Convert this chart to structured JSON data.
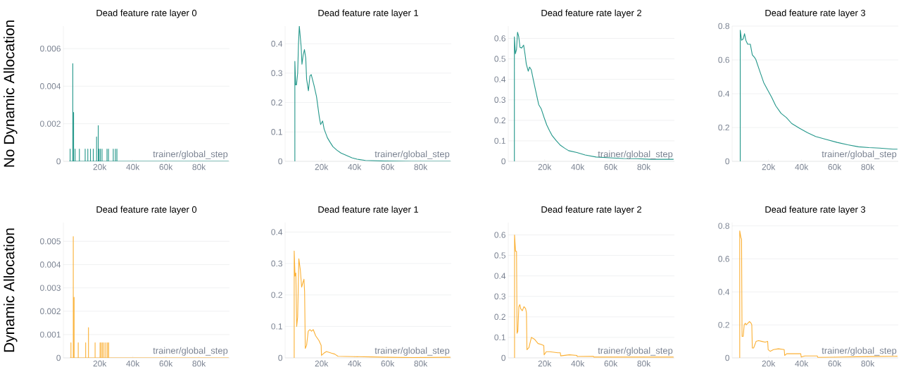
{
  "chart_data": [
    {
      "type": "line",
      "title": "Dead feature rate layer 0",
      "xlabel": "trainer/global_step",
      "ylabel": "No Dynamic Allocation",
      "color": "#23978a",
      "grid": "y",
      "xlim": [
        -2000,
        98500
      ],
      "xticks": [
        {
          "value": 20000,
          "label": "20k"
        },
        {
          "value": 40000,
          "label": "40k"
        },
        {
          "value": 60000,
          "label": "60k"
        },
        {
          "value": 80000,
          "label": "80k"
        }
      ],
      "ylim": [
        0,
        0.0072
      ],
      "yticks": [
        0,
        0.002,
        0.004,
        0.006
      ],
      "x": [
        1500,
        2100,
        2100,
        2100,
        3700,
        3700,
        3700,
        4200,
        4200,
        4200,
        5100,
        5100,
        5100,
        7700,
        7700,
        7700,
        11200,
        11200,
        11200,
        12800,
        12800,
        12800,
        14400,
        14400,
        14400,
        16100,
        16100,
        16100,
        18100,
        18100,
        18100,
        19100,
        19100,
        19100,
        19600,
        19600,
        19600,
        20400,
        20400,
        20400,
        21400,
        21400,
        21400,
        24400,
        24400,
        24400,
        25300,
        25300,
        25300,
        28200,
        28200,
        28200,
        29500,
        29500,
        29500,
        30400,
        30400,
        30400,
        98000
      ],
      "values": [
        0,
        0,
        0.00065,
        0,
        0,
        0.0052,
        0,
        0,
        0.0026,
        0,
        0,
        0.00065,
        0,
        0,
        0.00065,
        0,
        0,
        0.00065,
        0,
        0,
        0.00065,
        0,
        0,
        0.00065,
        0,
        0,
        0.00065,
        0,
        0,
        0.0013,
        0,
        0,
        0.0019,
        0,
        0,
        0.00065,
        0,
        0,
        0.00065,
        0,
        0,
        0.00065,
        0,
        0,
        0.00065,
        0,
        0,
        0.00065,
        0,
        0,
        0.00065,
        0,
        0,
        0.00065,
        0,
        0,
        0.00065,
        0,
        0
      ]
    },
    {
      "type": "line",
      "title": "Dead feature rate layer 1",
      "xlabel": "trainer/global_step",
      "color": "#23978a",
      "grid": "y",
      "xlim": [
        -2000,
        98500
      ],
      "xticks": [
        {
          "value": 20000,
          "label": "20k"
        },
        {
          "value": 40000,
          "label": "40k"
        },
        {
          "value": 60000,
          "label": "60k"
        },
        {
          "value": 80000,
          "label": "80k"
        }
      ],
      "ylim": [
        0,
        0.46
      ],
      "yticks": [
        0,
        0.1,
        0.2,
        0.3,
        0.4
      ],
      "x": [
        3900,
        3900,
        4400,
        4900,
        5600,
        6100,
        6600,
        7700,
        8200,
        8900,
        9700,
        10500,
        11000,
        12100,
        13000,
        13800,
        15400,
        17000,
        18700,
        19500,
        20700,
        21600,
        23600,
        25200,
        26900,
        29300,
        31800,
        35100,
        38400,
        41600,
        46600,
        58000,
        74400,
        98000
      ],
      "values": [
        0,
        0.34,
        0.26,
        0.26,
        0.3,
        0.4,
        0.46,
        0.39,
        0.33,
        0.36,
        0.38,
        0.35,
        0.28,
        0.24,
        0.29,
        0.295,
        0.26,
        0.22,
        0.15,
        0.125,
        0.137,
        0.11,
        0.08,
        0.065,
        0.05,
        0.038,
        0.028,
        0.02,
        0.012,
        0.007,
        0.003,
        0.001,
        0,
        0
      ]
    },
    {
      "type": "line",
      "title": "Dead feature rate layer 2",
      "xlabel": "trainer/global_step",
      "color": "#23978a",
      "grid": "y",
      "xlim": [
        -2000,
        98500
      ],
      "xticks": [
        {
          "value": 20000,
          "label": "20k"
        },
        {
          "value": 40000,
          "label": "40k"
        },
        {
          "value": 60000,
          "label": "60k"
        },
        {
          "value": 80000,
          "label": "80k"
        }
      ],
      "ylim": [
        0,
        0.66
      ],
      "yticks": [
        0,
        0.1,
        0.2,
        0.3,
        0.4,
        0.5,
        0.6
      ],
      "x": [
        1700,
        1700,
        2300,
        3000,
        3600,
        4300,
        5100,
        6100,
        7300,
        8100,
        8900,
        10100,
        10900,
        11900,
        13100,
        14700,
        16400,
        18000,
        19700,
        21300,
        23000,
        24600,
        27100,
        29600,
        32100,
        34500,
        39500,
        44500,
        51100,
        59300,
        67600,
        75900,
        84100,
        98000
      ],
      "values": [
        0,
        0.607,
        0.525,
        0.546,
        0.63,
        0.61,
        0.556,
        0.553,
        0.567,
        0.525,
        0.475,
        0.44,
        0.46,
        0.447,
        0.4,
        0.34,
        0.277,
        0.255,
        0.213,
        0.177,
        0.149,
        0.125,
        0.1,
        0.078,
        0.064,
        0.052,
        0.043,
        0.031,
        0.021,
        0.017,
        0.014,
        0.013,
        0.01,
        0.01
      ]
    },
    {
      "type": "line",
      "title": "Dead feature rate layer 3",
      "xlabel": "trainer/global_step",
      "color": "#23978a",
      "grid": "y",
      "xlim": [
        -2000,
        98500
      ],
      "xticks": [
        {
          "value": 20000,
          "label": "20k"
        },
        {
          "value": 40000,
          "label": "40k"
        },
        {
          "value": 60000,
          "label": "60k"
        },
        {
          "value": 80000,
          "label": "80k"
        }
      ],
      "ylim": [
        0,
        0.8
      ],
      "yticks": [
        0,
        0.2,
        0.4,
        0.6,
        0.8
      ],
      "x": [
        2900,
        2900,
        3700,
        4700,
        5500,
        6300,
        7400,
        9000,
        10200,
        11500,
        12300,
        14700,
        17100,
        19500,
        21900,
        24400,
        27600,
        30800,
        34000,
        38900,
        43700,
        48500,
        55000,
        61500,
        67900,
        74400,
        80800,
        87300,
        95300,
        98000
      ],
      "values": [
        0,
        0.776,
        0.716,
        0.724,
        0.755,
        0.716,
        0.693,
        0.693,
        0.63,
        0.615,
        0.603,
        0.534,
        0.466,
        0.422,
        0.379,
        0.328,
        0.284,
        0.259,
        0.224,
        0.195,
        0.169,
        0.147,
        0.129,
        0.112,
        0.098,
        0.086,
        0.081,
        0.078,
        0.072,
        0.072
      ]
    },
    {
      "type": "line",
      "title": "Dead feature rate layer 0",
      "xlabel": "trainer/global_step",
      "ylabel": "Dynamic Allocation",
      "color": "#fbb034",
      "grid": "y",
      "xlim": [
        -2000,
        98500
      ],
      "xticks": [
        {
          "value": 20000,
          "label": "20k"
        },
        {
          "value": 40000,
          "label": "40k"
        },
        {
          "value": 60000,
          "label": "60k"
        },
        {
          "value": 80000,
          "label": "80k"
        }
      ],
      "ylim": [
        0,
        0.0058
      ],
      "yticks": [
        0,
        0.001,
        0.002,
        0.003,
        0.004,
        0.005
      ],
      "x": [
        2000,
        2600,
        2600,
        2600,
        4000,
        4000,
        4000,
        4500,
        4500,
        4500,
        7000,
        7000,
        7000,
        11500,
        11500,
        11500,
        13200,
        13200,
        13200,
        17200,
        17200,
        17200,
        20200,
        20200,
        20200,
        20900,
        20900,
        20900,
        21700,
        21700,
        21700,
        22600,
        22600,
        22600,
        23700,
        23700,
        23700,
        24700,
        24700,
        24700,
        25400,
        25400,
        25400,
        98000
      ],
      "values": [
        0,
        0,
        0.00065,
        0,
        0,
        0.0052,
        0,
        0,
        0.0026,
        0,
        0,
        0.00065,
        0,
        0,
        0.00065,
        0,
        0,
        0.0013,
        0,
        0,
        0.00065,
        0,
        0,
        0.00065,
        0,
        0,
        0.00065,
        0,
        0,
        0.00065,
        0,
        0,
        0.00065,
        0,
        0,
        0.00065,
        0,
        0,
        0.00065,
        0,
        0,
        0.00065,
        0,
        0
      ]
    },
    {
      "type": "line",
      "title": "Dead feature rate layer 1",
      "xlabel": "trainer/global_step",
      "color": "#fbb034",
      "grid": "y",
      "xlim": [
        -2000,
        98500
      ],
      "xticks": [
        {
          "value": 20000,
          "label": "20k"
        },
        {
          "value": 40000,
          "label": "40k"
        },
        {
          "value": 60000,
          "label": "60k"
        },
        {
          "value": 80000,
          "label": "80k"
        }
      ],
      "ylim": [
        0,
        0.43
      ],
      "yticks": [
        0,
        0.1,
        0.2,
        0.3,
        0.4
      ],
      "x": [
        3500,
        3500,
        4000,
        4500,
        5000,
        5600,
        6300,
        7200,
        8000,
        8800,
        9400,
        9800,
        10200,
        11000,
        12000,
        13000,
        14000,
        15000,
        16500,
        18500,
        19800,
        20000,
        21500,
        23000,
        26000,
        28000,
        30000,
        40000,
        50000,
        60000,
        75000,
        98000
      ],
      "values": [
        0,
        0.34,
        0.26,
        0.27,
        0.1,
        0.13,
        0.315,
        0.28,
        0.225,
        0.24,
        0.25,
        0.21,
        0.03,
        0.04,
        0.085,
        0.09,
        0.085,
        0.09,
        0.07,
        0.055,
        0.04,
        0.008,
        0.015,
        0.02,
        0.015,
        0.012,
        0.005,
        0.004,
        0.003,
        0.002,
        0.001,
        0.002
      ]
    },
    {
      "type": "line",
      "title": "Dead feature rate layer 2",
      "xlabel": "trainer/global_step",
      "color": "#fbb034",
      "grid": "y",
      "xlim": [
        -2000,
        98500
      ],
      "xticks": [
        {
          "value": 20000,
          "label": "20k"
        },
        {
          "value": 40000,
          "label": "40k"
        },
        {
          "value": 60000,
          "label": "60k"
        },
        {
          "value": 80000,
          "label": "80k"
        }
      ],
      "ylim": [
        0,
        0.66
      ],
      "yticks": [
        0,
        0.1,
        0.2,
        0.3,
        0.4,
        0.5,
        0.6
      ],
      "x": [
        1800,
        1800,
        2400,
        3000,
        3300,
        3800,
        4400,
        5000,
        5500,
        6500,
        7500,
        8500,
        9000,
        9300,
        10500,
        12000,
        14000,
        15000,
        16000,
        18000,
        19500,
        19700,
        21000,
        23000,
        28000,
        29500,
        29700,
        35000,
        39500,
        39700,
        49500,
        49700,
        70000,
        98000
      ],
      "values": [
        0,
        0.6,
        0.52,
        0.52,
        0.12,
        0.13,
        0.25,
        0.26,
        0.24,
        0.23,
        0.25,
        0.24,
        0.22,
        0.04,
        0.05,
        0.1,
        0.09,
        0.08,
        0.07,
        0.065,
        0.06,
        0.015,
        0.03,
        0.03,
        0.025,
        0.025,
        0.01,
        0.015,
        0.012,
        0.007,
        0.008,
        0.004,
        0.004,
        0.004
      ]
    },
    {
      "type": "line",
      "title": "Dead feature rate layer 3",
      "xlabel": "trainer/global_step",
      "color": "#fbb034",
      "grid": "y",
      "xlim": [
        -2000,
        98500
      ],
      "xticks": [
        {
          "value": 20000,
          "label": "20k"
        },
        {
          "value": 40000,
          "label": "40k"
        },
        {
          "value": 60000,
          "label": "60k"
        },
        {
          "value": 80000,
          "label": "80k"
        }
      ],
      "ylim": [
        0,
        0.82
      ],
      "yticks": [
        0,
        0.2,
        0.4,
        0.6,
        0.8
      ],
      "x": [
        2600,
        2600,
        3300,
        3700,
        4000,
        4700,
        5300,
        6000,
        6500,
        7500,
        8500,
        9500,
        9900,
        10200,
        11000,
        12500,
        14000,
        16000,
        18000,
        19500,
        19800,
        21000,
        23000,
        26000,
        29500,
        29800,
        31000,
        35000,
        39500,
        39800,
        42000,
        49500,
        49800,
        60000,
        80000,
        98000
      ],
      "values": [
        0,
        0.77,
        0.73,
        0.72,
        0.13,
        0.13,
        0.2,
        0.21,
        0.2,
        0.21,
        0.22,
        0.21,
        0.2,
        0.06,
        0.06,
        0.1,
        0.105,
        0.1,
        0.095,
        0.1,
        0.05,
        0.04,
        0.05,
        0.055,
        0.05,
        0.015,
        0.025,
        0.025,
        0.025,
        0.005,
        0.012,
        0.012,
        0.003,
        0.004,
        0.008,
        0.01
      ]
    }
  ]
}
